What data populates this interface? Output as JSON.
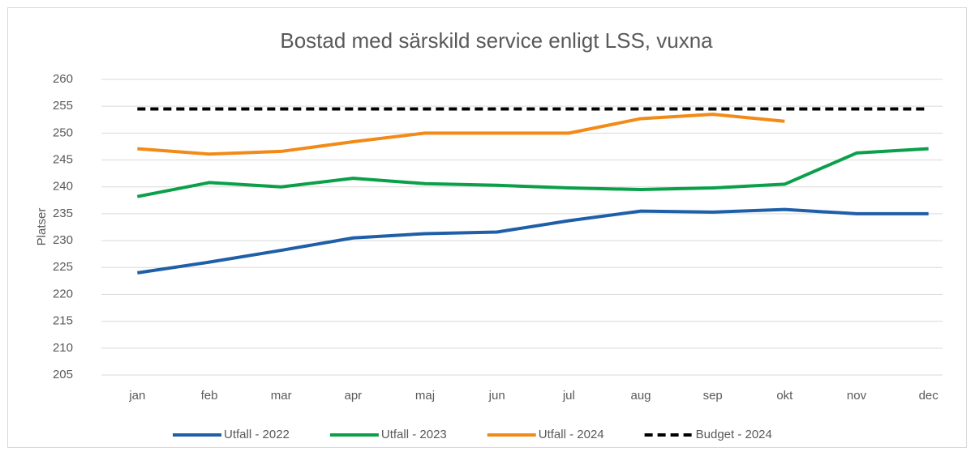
{
  "chart_data": {
    "type": "line",
    "title": "Bostad med särskild service enligt LSS, vuxna",
    "y_label": "Platser",
    "categories": [
      "jan",
      "feb",
      "mar",
      "apr",
      "maj",
      "jun",
      "jul",
      "aug",
      "sep",
      "okt",
      "nov",
      "dec"
    ],
    "series": [
      {
        "name": "Utfall - 2022",
        "color": "#1f5fa8",
        "values": [
          224,
          226,
          228.2,
          230.5,
          231.3,
          231.6,
          233.7,
          235.5,
          235.3,
          235.8,
          235,
          235
        ]
      },
      {
        "name": "Utfall - 2023",
        "color": "#0aa04a",
        "values": [
          238.2,
          240.8,
          240,
          241.6,
          240.6,
          240.3,
          239.8,
          239.5,
          239.8,
          240.5,
          246.3,
          247.1
        ]
      },
      {
        "name": "Utfall - 2024",
        "color": "#f28a17",
        "values": [
          247.1,
          246.1,
          246.6,
          248.4,
          250,
          250,
          250,
          252.7,
          253.5,
          252.2,
          null,
          null
        ]
      },
      {
        "name": "Budget - 2024",
        "color": "#000000",
        "line_style": "dashed",
        "values": [
          254.5,
          254.5,
          254.5,
          254.5,
          254.5,
          254.5,
          254.5,
          254.5,
          254.5,
          254.5,
          254.5,
          254.5
        ]
      }
    ],
    "ylim": [
      205,
      260
    ],
    "yticks": [
      205,
      210,
      215,
      220,
      225,
      230,
      235,
      240,
      245,
      250,
      255,
      260
    ],
    "grid": true,
    "legend": "bottom"
  }
}
